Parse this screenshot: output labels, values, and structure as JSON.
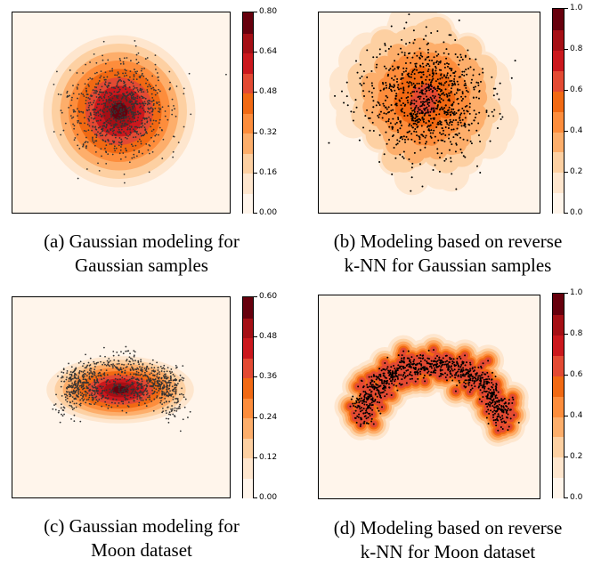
{
  "chart_data": [
    {
      "type": "heatmap",
      "panel": "a",
      "caption_line1": "(a) Gaussian modeling  for",
      "caption_line2": "Gaussian samples",
      "colorbar_ticks": [
        "0.80",
        "0.64",
        "0.48",
        "0.32",
        "0.16",
        "0.00"
      ],
      "colorbar_range": [
        0.0,
        0.8
      ],
      "grid": false
    },
    {
      "type": "heatmap",
      "panel": "b",
      "caption_line1": "(b) Modeling based on reverse",
      "caption_line2": "k-NN  for Gaussian samples",
      "colorbar_ticks": [
        "1.0",
        "0.8",
        "0.6",
        "0.4",
        "0.2",
        "0.0"
      ],
      "colorbar_range": [
        0.0,
        1.0
      ],
      "grid": false
    },
    {
      "type": "heatmap",
      "panel": "c",
      "caption_line1": "(c) Gaussian modeling  for",
      "caption_line2": "Moon dataset",
      "colorbar_ticks": [
        "0.60",
        "0.48",
        "0.36",
        "0.24",
        "0.12",
        "0.00"
      ],
      "colorbar_range": [
        0.0,
        0.6
      ],
      "grid": false
    },
    {
      "type": "heatmap",
      "panel": "d",
      "caption_line1": "(d) Modeling based on reverse",
      "caption_line2": "k-NN  for Moon dataset",
      "colorbar_ticks": [
        "1.0",
        "0.8",
        "0.6",
        "0.4",
        "0.2",
        "0.0"
      ],
      "colorbar_range": [
        0.0,
        1.0
      ],
      "grid": false
    }
  ],
  "colormap": [
    "#fff5eb",
    "#fee6ce",
    "#fdd0a2",
    "#fdae6b",
    "#fd8d3c",
    "#f16913",
    "#e34a33",
    "#cb181d",
    "#a50f15",
    "#67000d"
  ]
}
